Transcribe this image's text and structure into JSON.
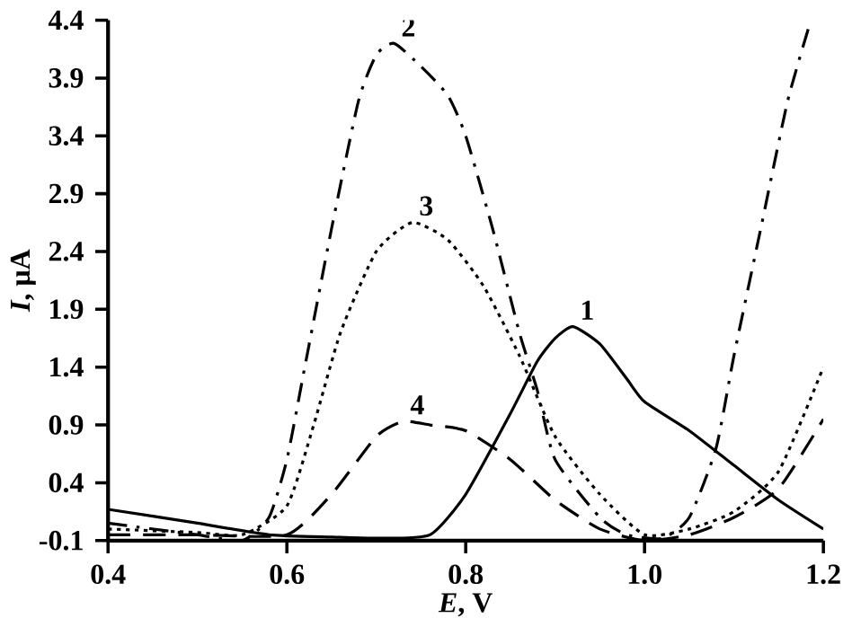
{
  "chart_data": {
    "type": "line",
    "xlabel": "*E*, V",
    "ylabel": "*I*, μA",
    "xlim": [
      0.4,
      1.2
    ],
    "xticks": [
      0.4,
      0.6,
      0.8,
      {
        "value": 1.0,
        "label": "1.0"
      },
      1.2
    ],
    "ylim": [
      -0.1,
      4.4
    ],
    "yticks": [
      -0.1,
      0.4,
      0.9,
      1.4,
      1.9,
      2.4,
      2.9,
      3.4,
      3.9,
      4.4
    ],
    "grid": false,
    "legend": false,
    "marker": "none",
    "series": [
      {
        "name": "1",
        "color": "#000000",
        "line_style": "solid",
        "x": [
          0.4,
          0.5,
          0.58,
          0.65,
          0.7,
          0.76,
          0.8,
          0.85,
          0.88,
          0.9,
          0.92,
          0.95,
          0.98,
          1.0,
          1.05,
          1.1,
          1.15,
          1.2
        ],
        "values": [
          0.17,
          0.05,
          -0.05,
          -0.07,
          -0.08,
          -0.05,
          0.3,
          1.0,
          1.45,
          1.65,
          1.75,
          1.6,
          1.3,
          1.1,
          0.85,
          0.55,
          0.25,
          0.0
        ]
      },
      {
        "name": "2",
        "color": "#000000",
        "line_style": "dashdot",
        "x": [
          0.4,
          0.5,
          0.55,
          0.58,
          0.6,
          0.62,
          0.65,
          0.68,
          0.7,
          0.72,
          0.75,
          0.78,
          0.8,
          0.83,
          0.86,
          0.88,
          0.9,
          0.95,
          0.98,
          1.02,
          1.05,
          1.08,
          1.1,
          1.13,
          1.16,
          1.186
        ],
        "values": [
          0.05,
          -0.05,
          -0.1,
          0.1,
          0.6,
          1.4,
          2.6,
          3.7,
          4.1,
          4.2,
          4.0,
          3.75,
          3.4,
          2.6,
          1.7,
          1.2,
          0.6,
          0.1,
          -0.05,
          -0.08,
          0.1,
          0.7,
          1.5,
          2.6,
          3.7,
          4.4
        ]
      },
      {
        "name": "3",
        "color": "#000000",
        "line_style": "dotted",
        "x": [
          0.4,
          0.5,
          0.55,
          0.6,
          0.63,
          0.66,
          0.7,
          0.74,
          0.78,
          0.82,
          0.86,
          0.9,
          0.95,
          1.0,
          1.05,
          1.1,
          1.15,
          1.2
        ],
        "values": [
          0.0,
          -0.03,
          -0.05,
          0.2,
          0.9,
          1.7,
          2.4,
          2.65,
          2.5,
          2.1,
          1.5,
          0.8,
          0.3,
          -0.05,
          0.0,
          0.15,
          0.5,
          1.4
        ]
      },
      {
        "name": "4",
        "color": "#000000",
        "line_style": "dashed",
        "x": [
          0.4,
          0.5,
          0.6,
          0.65,
          0.7,
          0.73,
          0.76,
          0.8,
          0.85,
          0.9,
          0.95,
          1.0,
          1.05,
          1.1,
          1.15,
          1.2
        ],
        "values": [
          -0.05,
          -0.05,
          -0.05,
          0.3,
          0.8,
          0.93,
          0.9,
          0.85,
          0.6,
          0.25,
          0.0,
          -0.1,
          -0.05,
          0.1,
          0.35,
          0.95
        ]
      }
    ]
  }
}
